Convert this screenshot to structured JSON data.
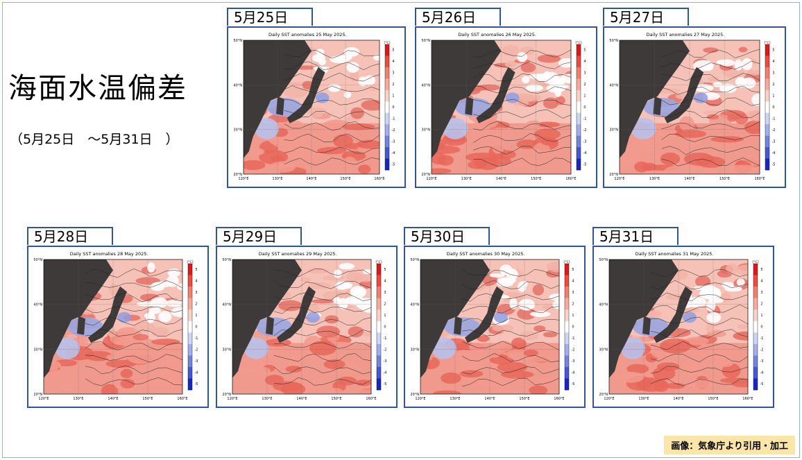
{
  "title": "海面水温偏差",
  "subtitle": "（5月25日　～5月31日　）",
  "credit": "画像：気象庁より引用・加工",
  "panels": [
    {
      "tab": "5月25日",
      "map_title": "Daily SST anomalies 25 May 2025."
    },
    {
      "tab": "5月26日",
      "map_title": "Daily SST anomalies 26 May 2025."
    },
    {
      "tab": "5月27日",
      "map_title": "Daily SST anomalies 27 May 2025."
    },
    {
      "tab": "5月28日",
      "map_title": "Daily SST anomalies 28 May 2025."
    },
    {
      "tab": "5月29日",
      "map_title": "Daily SST anomalies 29 May 2025."
    },
    {
      "tab": "5月30日",
      "map_title": "Daily SST anomalies 30 May 2025."
    },
    {
      "tab": "5月31日",
      "map_title": "Daily SST anomalies 31 May 2025."
    }
  ],
  "map_axes": {
    "lat_ticks": [
      "50°N",
      "40°N",
      "30°N",
      "20°N"
    ],
    "lon_ticks": [
      "120°E",
      "130°E",
      "140°E",
      "150°E",
      "160°E"
    ]
  },
  "colorbar": {
    "unit": "[°C]",
    "ticks": [
      "5",
      "4",
      "3",
      "2",
      "1",
      "0",
      "-1",
      "-2",
      "-3",
      "-4",
      "-5"
    ],
    "colors": [
      "#e0181c",
      "#ee4a3d",
      "#f47e6d",
      "#f8ab9b",
      "#fbd2c6",
      "#ffffff",
      "#cdd7f5",
      "#a1b0ec",
      "#7283e0",
      "#4557d3",
      "#1a26c4"
    ]
  },
  "colors": {
    "panel_border": "#2f5597",
    "land": "#3d3a39",
    "warm": "#f09a8e",
    "cool": "#9aa6e0",
    "credit_bg": "#fbe5a9"
  }
}
